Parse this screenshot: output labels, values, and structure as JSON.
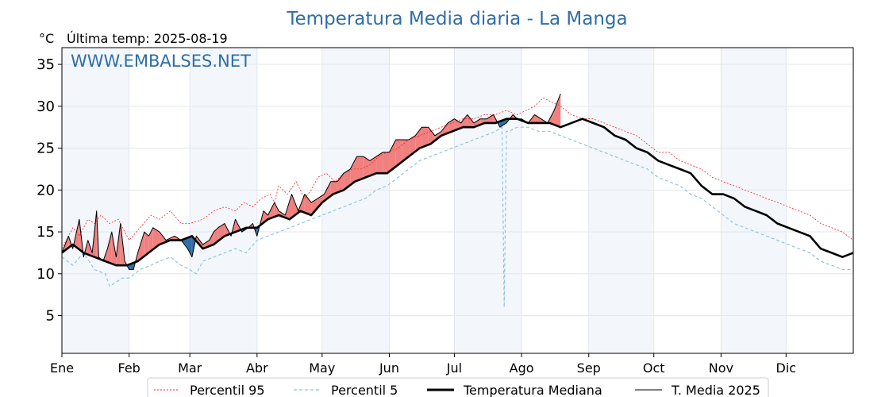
{
  "chart_data": {
    "type": "line",
    "title": "Temperatura Media diaria - La Manga",
    "unit_label": "°C",
    "last_temp_label": "Última temp: 2025-08-19",
    "watermark": "WWW.EMBALSES.NET",
    "ylim": [
      0.5,
      37
    ],
    "yticks": [
      5,
      10,
      15,
      20,
      25,
      30,
      35
    ],
    "xlim": [
      0,
      365
    ],
    "months": [
      {
        "label": "Ene",
        "day": 0
      },
      {
        "label": "Feb",
        "day": 31
      },
      {
        "label": "Mar",
        "day": 59
      },
      {
        "label": "Abr",
        "day": 90
      },
      {
        "label": "May",
        "day": 120
      },
      {
        "label": "Jun",
        "day": 151
      },
      {
        "label": "Jul",
        "day": 181
      },
      {
        "label": "Ago",
        "day": 212
      },
      {
        "label": "Sep",
        "day": 243
      },
      {
        "label": "Oct",
        "day": 273
      },
      {
        "label": "Nov",
        "day": 304
      },
      {
        "label": "Dic",
        "day": 334
      }
    ],
    "shaded_month_bands": [
      [
        0,
        31
      ],
      [
        59,
        90
      ],
      [
        120,
        151
      ],
      [
        181,
        212
      ],
      [
        243,
        273
      ],
      [
        304,
        334
      ]
    ],
    "grid": true,
    "colors": {
      "title": "#2f6ea6",
      "watermark": "#2f6ea6",
      "p95": "#ff2020",
      "p5": "#8fc5dc",
      "median": "#000000",
      "current": "#000000",
      "above_fill": "#f08080",
      "below_fill": "#2f6ea6",
      "band": "#f3f7fb",
      "grid": "#e3e6ea"
    },
    "legend": {
      "position": "bottom",
      "entries": [
        {
          "key": "p95",
          "label": "Percentil 95"
        },
        {
          "key": "p5",
          "label": "Percentil 5"
        },
        {
          "key": "median",
          "label": "Temperatura Mediana"
        },
        {
          "key": "current",
          "label": "T. Media 2025"
        }
      ]
    },
    "series": [
      {
        "key": "p95",
        "name": "Percentil 95",
        "style": "dashed",
        "x": [
          0,
          5,
          8,
          12,
          15,
          18,
          22,
          26,
          28,
          31,
          36,
          41,
          45,
          50,
          55,
          59,
          65,
          70,
          75,
          80,
          84,
          88,
          92,
          96,
          98,
          100,
          104,
          108,
          112,
          115,
          118,
          122,
          126,
          130,
          134,
          138,
          142,
          146,
          150,
          155,
          160,
          165,
          170,
          175,
          180,
          185,
          190,
          195,
          200,
          205,
          210,
          214,
          218,
          222,
          226,
          230,
          235,
          240,
          245,
          250,
          255,
          260,
          265,
          270,
          275,
          280,
          285,
          290,
          295,
          300,
          305,
          310,
          315,
          320,
          325,
          330,
          335,
          340,
          345,
          350,
          355,
          360,
          365
        ],
        "y": [
          13.0,
          15.5,
          14.5,
          16.5,
          16.0,
          17.0,
          16.0,
          16.5,
          15.5,
          14.0,
          15.5,
          17.0,
          16.5,
          17.5,
          16.0,
          16.0,
          16.5,
          17.5,
          18.0,
          17.5,
          18.5,
          18.0,
          19.0,
          19.5,
          18.5,
          20.5,
          19.5,
          21.0,
          19.0,
          20.0,
          21.5,
          22.0,
          21.0,
          22.0,
          22.5,
          22.5,
          23.0,
          24.0,
          24.5,
          25.0,
          26.0,
          26.5,
          27.0,
          27.5,
          28.0,
          28.5,
          28.5,
          29.0,
          29.0,
          29.5,
          29.0,
          29.5,
          30.0,
          31.0,
          30.5,
          30.0,
          29.0,
          28.5,
          28.5,
          28.0,
          27.5,
          27.0,
          26.5,
          25.5,
          24.5,
          24.5,
          23.5,
          23.0,
          22.5,
          21.5,
          21.0,
          20.5,
          20.0,
          19.5,
          19.0,
          18.5,
          18.0,
          17.5,
          17.0,
          16.0,
          15.5,
          15.0,
          14.0
        ]
      },
      {
        "key": "p5",
        "name": "Percentil 5",
        "style": "dashed",
        "x": [
          0,
          5,
          10,
          15,
          20,
          22,
          25,
          28,
          31,
          36,
          41,
          45,
          50,
          55,
          59,
          62,
          65,
          70,
          75,
          80,
          85,
          90,
          95,
          100,
          105,
          110,
          115,
          120,
          125,
          130,
          135,
          140,
          145,
          150,
          155,
          160,
          165,
          170,
          175,
          180,
          185,
          190,
          195,
          200,
          203,
          204,
          205,
          206,
          210,
          215,
          220,
          225,
          230,
          235,
          240,
          245,
          250,
          255,
          260,
          265,
          270,
          275,
          280,
          285,
          290,
          295,
          300,
          305,
          310,
          315,
          320,
          325,
          330,
          335,
          340,
          345,
          350,
          355,
          360,
          365
        ],
        "y": [
          12.0,
          11.0,
          12.5,
          10.5,
          10.0,
          8.5,
          9.0,
          9.5,
          9.5,
          10.5,
          11.0,
          11.5,
          12.0,
          11.0,
          10.5,
          10.0,
          11.5,
          12.0,
          12.5,
          13.0,
          12.5,
          14.0,
          14.5,
          15.0,
          15.5,
          16.0,
          16.5,
          17.0,
          17.5,
          18.0,
          18.5,
          19.0,
          20.0,
          20.5,
          21.5,
          22.5,
          23.5,
          24.0,
          24.5,
          25.0,
          25.5,
          26.0,
          26.5,
          27.0,
          27.5,
          6.0,
          27.0,
          27.0,
          27.5,
          27.5,
          27.0,
          27.0,
          26.5,
          26.0,
          25.5,
          25.0,
          24.5,
          24.0,
          23.5,
          23.0,
          22.5,
          21.5,
          21.0,
          20.5,
          19.5,
          19.0,
          18.0,
          17.0,
          16.0,
          15.5,
          15.0,
          14.5,
          14.0,
          13.5,
          13.0,
          12.5,
          11.5,
          11.0,
          10.5,
          10.5
        ]
      },
      {
        "key": "median",
        "name": "Temperatura Mediana",
        "style": "thick",
        "x": [
          0,
          5,
          10,
          15,
          20,
          25,
          30,
          35,
          40,
          45,
          50,
          55,
          60,
          65,
          70,
          75,
          80,
          85,
          90,
          95,
          100,
          105,
          110,
          115,
          120,
          125,
          130,
          135,
          140,
          145,
          150,
          155,
          160,
          165,
          170,
          175,
          180,
          185,
          190,
          195,
          200,
          205,
          210,
          215,
          220,
          225,
          230,
          235,
          240,
          245,
          250,
          255,
          260,
          265,
          270,
          275,
          280,
          285,
          290,
          295,
          300,
          305,
          310,
          315,
          320,
          325,
          330,
          335,
          340,
          345,
          350,
          355,
          360,
          365
        ],
        "y": [
          12.5,
          13.5,
          12.5,
          12.0,
          11.5,
          11.0,
          11.0,
          11.5,
          12.5,
          13.5,
          14.0,
          14.0,
          14.5,
          13.0,
          13.5,
          14.5,
          15.0,
          15.5,
          15.5,
          16.5,
          17.0,
          16.5,
          17.5,
          17.0,
          18.5,
          19.5,
          20.0,
          21.0,
          21.5,
          22.0,
          22.0,
          23.0,
          24.0,
          25.0,
          25.5,
          26.5,
          27.0,
          27.5,
          27.5,
          28.0,
          28.0,
          28.5,
          28.5,
          28.0,
          28.0,
          28.0,
          27.5,
          28.0,
          28.5,
          28.0,
          27.5,
          26.5,
          26.0,
          25.0,
          24.5,
          23.5,
          23.0,
          22.5,
          22.0,
          20.5,
          19.5,
          19.5,
          19.0,
          18.0,
          17.5,
          17.0,
          16.0,
          15.5,
          15.0,
          14.5,
          13.0,
          12.5,
          12.0,
          12.5
        ]
      },
      {
        "key": "current",
        "name": "T. Media 2025",
        "style": "thin",
        "x": [
          0,
          3,
          5,
          8,
          10,
          12,
          14,
          16,
          17,
          19,
          21,
          23,
          25,
          27,
          29,
          31,
          33,
          35,
          38,
          40,
          42,
          45,
          48,
          52,
          55,
          58,
          60,
          62,
          65,
          68,
          70,
          72,
          75,
          78,
          80,
          83,
          86,
          88,
          90,
          93,
          95,
          98,
          100,
          103,
          106,
          109,
          112,
          115,
          118,
          121,
          124,
          127,
          130,
          133,
          136,
          139,
          142,
          145,
          148,
          151,
          154,
          157,
          160,
          163,
          166,
          169,
          172,
          175,
          178,
          181,
          184,
          187,
          190,
          193,
          196,
          199,
          202,
          205,
          208,
          210,
          212,
          215,
          218,
          221,
          224,
          227,
          230
        ],
        "y": [
          12.5,
          14.5,
          13.0,
          16.5,
          12.0,
          14.0,
          12.5,
          17.5,
          12.0,
          11.5,
          13.0,
          15.0,
          12.0,
          16.0,
          11.5,
          10.5,
          10.5,
          12.5,
          15.0,
          14.5,
          15.5,
          15.0,
          14.0,
          14.5,
          14.0,
          13.0,
          12.0,
          14.5,
          13.5,
          14.0,
          15.0,
          15.5,
          16.0,
          14.5,
          16.5,
          15.0,
          15.5,
          16.0,
          14.5,
          17.5,
          17.0,
          18.5,
          17.5,
          17.0,
          19.5,
          17.5,
          19.5,
          18.5,
          19.0,
          19.5,
          21.0,
          21.0,
          22.0,
          22.5,
          24.0,
          24.0,
          23.5,
          24.0,
          24.5,
          24.5,
          26.0,
          26.0,
          26.0,
          26.5,
          27.5,
          27.5,
          26.5,
          27.0,
          28.0,
          28.5,
          28.0,
          29.0,
          28.0,
          28.5,
          28.5,
          29.0,
          27.5,
          28.0,
          29.0,
          28.5,
          28.5,
          28.0,
          29.0,
          28.5,
          28.0,
          29.5,
          31.5
        ]
      }
    ]
  }
}
